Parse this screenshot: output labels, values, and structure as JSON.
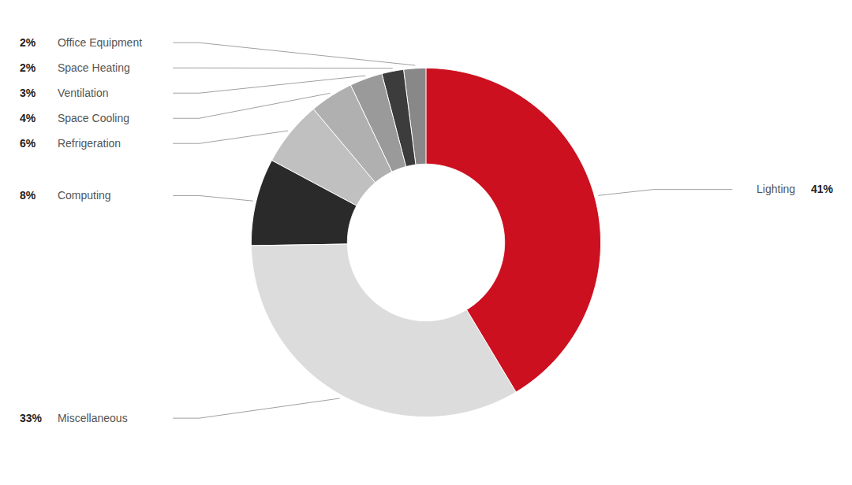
{
  "chart_data": {
    "type": "pie",
    "categories": [
      "Lighting",
      "Miscellaneous",
      "Computing",
      "Refrigeration",
      "Space Cooling",
      "Ventilation",
      "Space Heating",
      "Office Equipment"
    ],
    "values": [
      41,
      33,
      8,
      6,
      4,
      3,
      2,
      2
    ],
    "value_labels": [
      "41%",
      "33%",
      "8%",
      "6%",
      "4%",
      "3%",
      "2%",
      "2%"
    ],
    "colors": [
      "#CC1020",
      "#DCDCDC",
      "#2A2A2A",
      "#C0C0C0",
      "#B0B0B0",
      "#9A9A9A",
      "#3C3C3C",
      "#888888"
    ],
    "data_labels": true
  }
}
